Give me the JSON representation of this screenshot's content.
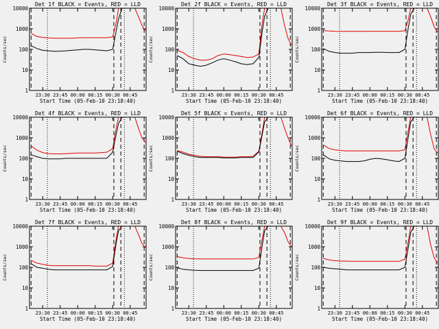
{
  "chart_data": {
    "type": "line",
    "grid_of_panels": "3x3",
    "y_scale": "log",
    "ylim": [
      1,
      10000
    ],
    "ylabel": "Counts/sec",
    "y_ticks": [
      "1",
      "10",
      "100",
      "1000",
      "10000"
    ],
    "xlabel": "Start Time (05-Feb-10 23:18:40)",
    "xlim": [
      "23:18:40",
      "00:58:40"
    ],
    "x_ticks": [
      "23:30",
      "23:45",
      "00:00",
      "00:15",
      "00:30",
      "00:45"
    ],
    "series_colors": {
      "events": "#000000",
      "lld": "#e00000"
    },
    "legend_in_title": "BLACK = Events, RED = LLD",
    "vertical_markers": {
      "dotted": [
        "23:34",
        "00:40"
      ],
      "dashed": [
        "23:20",
        "00:31",
        "00:37",
        "00:57"
      ]
    },
    "x": [
      "23:20",
      "23:25",
      "23:30",
      "23:35",
      "23:40",
      "23:45",
      "23:50",
      "23:55",
      "00:00",
      "00:05",
      "00:10",
      "00:15",
      "00:20",
      "00:25",
      "00:30",
      "00:33",
      "00:35",
      "00:38",
      "00:40",
      "00:43",
      "00:46",
      "00:49",
      "00:52",
      "00:55",
      "00:58"
    ],
    "panels": [
      {
        "title": "Det 1f BLACK = Events, RED = LLD",
        "events": [
          150,
          110,
          90,
          85,
          80,
          82,
          85,
          90,
          95,
          100,
          100,
          95,
          90,
          85,
          100,
          800,
          3000,
          10000,
          10000,
          10000,
          10000,
          10000,
          10000,
          10000,
          10000
        ],
        "lld": [
          600,
          420,
          380,
          360,
          350,
          350,
          350,
          350,
          360,
          370,
          370,
          370,
          370,
          370,
          400,
          2000,
          10000,
          10000,
          10000,
          10000,
          10000,
          10000,
          4000,
          1500,
          800
        ]
      },
      {
        "title": "Det 2f BLACK = Events, RED = LLD",
        "events": [
          50,
          35,
          20,
          17,
          15,
          17,
          22,
          30,
          35,
          30,
          25,
          20,
          18,
          20,
          40,
          800,
          4000,
          10000,
          10000,
          10000,
          10000,
          10000,
          10000,
          10000,
          10000
        ],
        "lld": [
          90,
          70,
          45,
          35,
          30,
          30,
          35,
          50,
          60,
          55,
          50,
          45,
          40,
          42,
          60,
          2000,
          10000,
          10000,
          10000,
          10000,
          10000,
          10000,
          1500,
          350,
          160
        ]
      },
      {
        "title": "Det 3f BLACK = Events, RED = LLD",
        "events": [
          110,
          80,
          70,
          65,
          65,
          65,
          70,
          70,
          70,
          72,
          72,
          70,
          70,
          70,
          100,
          1200,
          5000,
          10000,
          10000,
          10000,
          10000,
          10000,
          10000,
          10000,
          10000
        ],
        "lld": [
          820,
          780,
          760,
          750,
          750,
          750,
          750,
          750,
          750,
          760,
          760,
          760,
          760,
          760,
          800,
          3000,
          10000,
          10000,
          10000,
          10000,
          10000,
          10000,
          4000,
          1300,
          700
        ]
      },
      {
        "title": "Det 4f BLACK = Events, RED = LLD",
        "events": [
          150,
          120,
          100,
          95,
          95,
          95,
          100,
          100,
          100,
          100,
          100,
          100,
          100,
          100,
          200,
          1500,
          5000,
          10000,
          10000,
          10000,
          10000,
          10000,
          10000,
          10000,
          10000
        ],
        "lld": [
          400,
          250,
          190,
          170,
          165,
          165,
          170,
          175,
          180,
          180,
          180,
          180,
          190,
          200,
          300,
          3000,
          10000,
          10000,
          10000,
          10000,
          10000,
          10000,
          3000,
          1000,
          600
        ]
      },
      {
        "title": "Det 5f BLACK = Events, RED = LLD",
        "events": [
          220,
          170,
          140,
          120,
          110,
          110,
          110,
          110,
          105,
          105,
          105,
          110,
          110,
          110,
          200,
          1500,
          6000,
          10000,
          10000,
          10000,
          10000,
          10000,
          10000,
          10000,
          10000
        ],
        "lld": [
          240,
          200,
          160,
          140,
          125,
          120,
          120,
          120,
          115,
          115,
          115,
          120,
          120,
          125,
          220,
          2000,
          10000,
          10000,
          10000,
          10000,
          10000,
          10000,
          3000,
          1000,
          400
        ]
      },
      {
        "title": "Det 6f BLACK = Events, RED = LLD",
        "events": [
          150,
          95,
          80,
          75,
          70,
          70,
          70,
          75,
          90,
          100,
          95,
          85,
          75,
          70,
          100,
          1200,
          6000,
          10000,
          10000,
          10000,
          10000,
          10000,
          10000,
          10000,
          10000
        ],
        "lld": [
          450,
          300,
          260,
          240,
          230,
          230,
          230,
          230,
          230,
          230,
          230,
          230,
          230,
          230,
          260,
          2500,
          10000,
          10000,
          10000,
          10000,
          10000,
          10000,
          1500,
          300,
          180
        ]
      },
      {
        "title": "Det 7f BLACK = Events, RED = LLD",
        "events": [
          150,
          100,
          90,
          80,
          75,
          75,
          75,
          75,
          75,
          75,
          75,
          75,
          75,
          75,
          110,
          1500,
          6000,
          10000,
          10000,
          10000,
          10000,
          10000,
          10000,
          10000,
          10000
        ],
        "lld": [
          220,
          160,
          140,
          125,
          120,
          120,
          120,
          120,
          120,
          120,
          120,
          115,
          115,
          115,
          160,
          2500,
          10000,
          10000,
          10000,
          10000,
          10000,
          10000,
          4000,
          1500,
          900
        ]
      },
      {
        "title": "Det 8f BLACK = Events, RED = LLD",
        "events": [
          95,
          80,
          75,
          72,
          70,
          70,
          70,
          70,
          70,
          70,
          70,
          70,
          70,
          70,
          90,
          1200,
          6000,
          10000,
          10000,
          10000,
          10000,
          10000,
          10000,
          10000,
          10000
        ],
        "lld": [
          330,
          290,
          270,
          260,
          255,
          255,
          255,
          255,
          255,
          255,
          255,
          255,
          255,
          255,
          300,
          2500,
          10000,
          10000,
          10000,
          10000,
          10000,
          10000,
          5000,
          1800,
          1000
        ]
      },
      {
        "title": "Det 9f BLACK = Events, RED = LLD",
        "events": [
          100,
          90,
          85,
          80,
          75,
          75,
          75,
          75,
          75,
          75,
          75,
          75,
          75,
          75,
          100,
          1000,
          5000,
          10000,
          10000,
          10000,
          10000,
          10000,
          10000,
          10000,
          10000
        ],
        "lld": [
          270,
          230,
          210,
          200,
          200,
          195,
          195,
          195,
          195,
          195,
          195,
          195,
          195,
          195,
          250,
          2000,
          10000,
          10000,
          10000,
          10000,
          10000,
          10000,
          1300,
          300,
          160
        ]
      }
    ]
  }
}
